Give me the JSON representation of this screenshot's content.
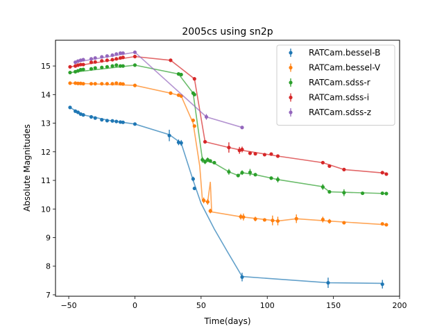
{
  "chart_data": {
    "type": "scatter",
    "title": "2005cs using sn2p",
    "xlabel": "Time(days)",
    "ylabel": "Absolute Magnitudes",
    "xlim": [
      -60,
      200
    ],
    "ylim": [
      6.95,
      15.9
    ],
    "xticks": [
      -50,
      0,
      50,
      100,
      150,
      200
    ],
    "xtick_labels": [
      "−50",
      "0",
      "50",
      "100",
      "150",
      "200"
    ],
    "yticks": [
      7,
      8,
      9,
      10,
      11,
      12,
      13,
      14,
      15
    ],
    "ytick_labels": [
      "7",
      "8",
      "9",
      "10",
      "11",
      "12",
      "13",
      "14",
      "15"
    ],
    "grid": false,
    "legend_position": "top-right",
    "series": [
      {
        "name": "RATCam.bessel-B",
        "color": "#1f77b4",
        "points": [
          [
            -49,
            13.55
          ],
          [
            -45,
            13.42
          ],
          [
            -43,
            13.38
          ],
          [
            -41,
            13.32
          ],
          [
            -39,
            13.29
          ],
          [
            -33,
            13.22
          ],
          [
            -30,
            13.18
          ],
          [
            -25,
            13.12
          ],
          [
            -21,
            13.09
          ],
          [
            -17,
            13.08
          ],
          [
            -14,
            13.06
          ],
          [
            -11,
            13.04
          ],
          [
            -9,
            13.03
          ],
          [
            0,
            12.97
          ],
          [
            26,
            12.57
          ],
          [
            33,
            12.33
          ],
          [
            35,
            12.31
          ],
          [
            44,
            11.05
          ],
          [
            45,
            10.72
          ],
          [
            81,
            7.62
          ],
          [
            146,
            7.42
          ],
          [
            187,
            7.37
          ]
        ],
        "errors": [
          0.03,
          0.03,
          0.03,
          0.03,
          0.03,
          0.03,
          0.03,
          0.03,
          0.03,
          0.03,
          0.03,
          0.03,
          0.03,
          0.03,
          0.2,
          0.1,
          0.1,
          0.08,
          0.05,
          0.15,
          0.18,
          0.15
        ],
        "model": [
          [
            -49,
            13.55
          ],
          [
            -40,
            13.3
          ],
          [
            -20,
            13.1
          ],
          [
            0,
            12.97
          ],
          [
            26,
            12.6
          ],
          [
            35,
            12.3
          ],
          [
            44,
            11.0
          ],
          [
            50,
            10.2
          ],
          [
            60,
            9.3
          ],
          [
            70,
            8.5
          ],
          [
            81,
            7.64
          ],
          [
            146,
            7.42
          ],
          [
            187,
            7.4
          ]
        ]
      },
      {
        "name": "RATCam.bessel-V",
        "color": "#ff7f0e",
        "points": [
          [
            -49,
            14.4
          ],
          [
            -45,
            14.4
          ],
          [
            -43,
            14.39
          ],
          [
            -41,
            14.39
          ],
          [
            -39,
            14.38
          ],
          [
            -33,
            14.38
          ],
          [
            -30,
            14.38
          ],
          [
            -25,
            14.38
          ],
          [
            -21,
            14.38
          ],
          [
            -17,
            14.38
          ],
          [
            -14,
            14.4
          ],
          [
            -11,
            14.38
          ],
          [
            -9,
            14.37
          ],
          [
            0,
            14.32
          ],
          [
            27,
            14.05
          ],
          [
            33,
            13.98
          ],
          [
            35,
            13.95
          ],
          [
            44,
            13.1
          ],
          [
            45,
            12.9
          ],
          [
            52,
            10.3
          ],
          [
            55,
            10.25
          ],
          [
            57,
            9.93
          ],
          [
            80,
            9.73
          ],
          [
            82,
            9.72
          ],
          [
            91,
            9.65
          ],
          [
            98,
            9.62
          ],
          [
            104,
            9.6
          ],
          [
            108,
            9.58
          ],
          [
            122,
            9.66
          ],
          [
            142,
            9.63
          ],
          [
            147,
            9.57
          ],
          [
            158,
            9.52
          ],
          [
            187,
            9.48
          ],
          [
            190,
            9.45
          ]
        ],
        "errors": [
          0.03,
          0.03,
          0.03,
          0.03,
          0.03,
          0.03,
          0.03,
          0.03,
          0.03,
          0.03,
          0.05,
          0.03,
          0.03,
          0.03,
          0.05,
          0.05,
          0.05,
          0.05,
          0.05,
          0.1,
          0.1,
          0.08,
          0.1,
          0.12,
          0.08,
          0.05,
          0.17,
          0.15,
          0.15,
          0.1,
          0.08,
          0.05,
          0.05,
          0.05
        ],
        "model": [
          [
            -49,
            14.4
          ],
          [
            0,
            14.32
          ],
          [
            27,
            14.05
          ],
          [
            35,
            13.95
          ],
          [
            44,
            13.0
          ],
          [
            49,
            11.5
          ],
          [
            51,
            10.3
          ],
          [
            55,
            10.25
          ],
          [
            57,
            10.95
          ],
          [
            58,
            9.9
          ],
          [
            80,
            9.73
          ],
          [
            108,
            9.58
          ],
          [
            122,
            9.66
          ],
          [
            146,
            9.58
          ],
          [
            190,
            9.45
          ]
        ]
      },
      {
        "name": "RATCam.sdss-r",
        "color": "#2ca02c",
        "points": [
          [
            -49,
            14.77
          ],
          [
            -45,
            14.8
          ],
          [
            -43,
            14.83
          ],
          [
            -41,
            14.87
          ],
          [
            -39,
            14.88
          ],
          [
            -33,
            14.9
          ],
          [
            -30,
            14.93
          ],
          [
            -25,
            14.95
          ],
          [
            -21,
            14.97
          ],
          [
            -17,
            15.0
          ],
          [
            -14,
            15.03
          ],
          [
            -11,
            15.0
          ],
          [
            -9,
            15.0
          ],
          [
            0,
            15.03
          ],
          [
            33,
            14.72
          ],
          [
            35,
            14.7
          ],
          [
            44,
            14.05
          ],
          [
            45,
            14.0
          ],
          [
            51,
            11.72
          ],
          [
            53,
            11.65
          ],
          [
            55,
            11.72
          ],
          [
            57,
            11.68
          ],
          [
            60,
            11.62
          ],
          [
            71,
            11.3
          ],
          [
            78,
            11.17
          ],
          [
            81,
            11.27
          ],
          [
            87,
            11.28
          ],
          [
            91,
            11.2
          ],
          [
            103,
            11.08
          ],
          [
            108,
            11.03
          ],
          [
            142,
            10.77
          ],
          [
            147,
            10.6
          ],
          [
            158,
            10.57
          ],
          [
            172,
            10.55
          ],
          [
            187,
            10.55
          ],
          [
            190,
            10.54
          ]
        ],
        "errors": [
          0.03,
          0.03,
          0.03,
          0.03,
          0.03,
          0.03,
          0.03,
          0.03,
          0.03,
          0.03,
          0.03,
          0.03,
          0.03,
          0.03,
          0.05,
          0.05,
          0.05,
          0.05,
          0.1,
          0.08,
          0.08,
          0.05,
          0.05,
          0.1,
          0.05,
          0.08,
          0.12,
          0.05,
          0.05,
          0.1,
          0.1,
          0.05,
          0.12,
          0.04,
          0.05,
          0.05
        ],
        "model": [
          [
            -49,
            14.77
          ],
          [
            0,
            15.03
          ],
          [
            33,
            14.72
          ],
          [
            44,
            14.05
          ],
          [
            51,
            11.72
          ],
          [
            60,
            11.6
          ],
          [
            71,
            11.3
          ],
          [
            78,
            11.17
          ],
          [
            81,
            11.27
          ],
          [
            91,
            11.2
          ],
          [
            108,
            11.03
          ],
          [
            142,
            10.78
          ],
          [
            147,
            10.6
          ],
          [
            190,
            10.54
          ]
        ]
      },
      {
        "name": "RATCam.sdss-i",
        "color": "#d62728",
        "points": [
          [
            -49,
            14.97
          ],
          [
            -45,
            15.0
          ],
          [
            -43,
            15.03
          ],
          [
            -41,
            15.05
          ],
          [
            -39,
            15.05
          ],
          [
            -33,
            15.13
          ],
          [
            -30,
            15.14
          ],
          [
            -25,
            15.18
          ],
          [
            -21,
            15.2
          ],
          [
            -17,
            15.22
          ],
          [
            -14,
            15.25
          ],
          [
            -11,
            15.28
          ],
          [
            -9,
            15.3
          ],
          [
            0,
            15.33
          ],
          [
            27,
            15.2
          ],
          [
            45,
            14.55
          ],
          [
            53,
            12.35
          ],
          [
            71,
            12.15
          ],
          [
            79,
            12.05
          ],
          [
            81,
            12.08
          ],
          [
            87,
            11.95
          ],
          [
            91,
            11.93
          ],
          [
            98,
            11.9
          ],
          [
            103,
            11.92
          ],
          [
            108,
            11.85
          ],
          [
            142,
            11.62
          ],
          [
            147,
            11.5
          ],
          [
            158,
            11.38
          ],
          [
            187,
            11.27
          ],
          [
            190,
            11.22
          ]
        ],
        "errors": [
          0.03,
          0.03,
          0.03,
          0.03,
          0.03,
          0.03,
          0.03,
          0.03,
          0.03,
          0.03,
          0.03,
          0.03,
          0.03,
          0.03,
          0.05,
          0.05,
          0.05,
          0.18,
          0.12,
          0.1,
          0.05,
          0.05,
          0.05,
          0.05,
          0.05,
          0.05,
          0.05,
          0.05,
          0.05,
          0.05
        ],
        "model": [
          [
            -49,
            14.97
          ],
          [
            0,
            15.33
          ],
          [
            27,
            15.2
          ],
          [
            45,
            14.55
          ],
          [
            53,
            12.35
          ],
          [
            71,
            12.15
          ],
          [
            81,
            12.05
          ],
          [
            108,
            11.85
          ],
          [
            142,
            11.62
          ],
          [
            158,
            11.38
          ],
          [
            190,
            11.25
          ]
        ]
      },
      {
        "name": "RATCam.sdss-z",
        "color": "#9467bd",
        "points": [
          [
            -45,
            15.13
          ],
          [
            -43,
            15.17
          ],
          [
            -41,
            15.2
          ],
          [
            -39,
            15.22
          ],
          [
            -33,
            15.25
          ],
          [
            -30,
            15.28
          ],
          [
            -25,
            15.32
          ],
          [
            -21,
            15.35
          ],
          [
            -17,
            15.38
          ],
          [
            -14,
            15.42
          ],
          [
            -11,
            15.45
          ],
          [
            -9,
            15.45
          ],
          [
            0,
            15.48
          ],
          [
            54,
            13.22
          ],
          [
            81,
            12.85
          ]
        ],
        "errors": [
          0.03,
          0.03,
          0.03,
          0.03,
          0.03,
          0.03,
          0.03,
          0.03,
          0.03,
          0.03,
          0.03,
          0.03,
          0.03,
          0.1,
          0.05
        ],
        "model": [
          [
            -45,
            15.13
          ],
          [
            0,
            15.48
          ],
          [
            54,
            13.22
          ],
          [
            81,
            12.85
          ]
        ]
      }
    ]
  }
}
